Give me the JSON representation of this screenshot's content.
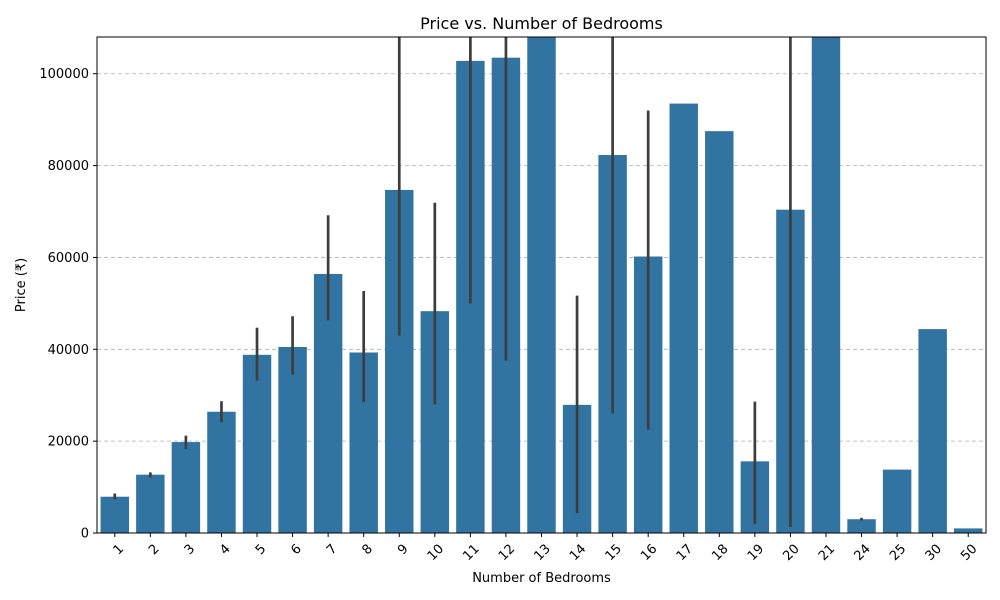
{
  "chart_data": {
    "type": "bar",
    "title": "Price vs. Number of Bedrooms",
    "xlabel": "Number of Bedrooms",
    "ylabel": "Price (₹)",
    "ylim": [
      0,
      108000
    ],
    "yticks": [
      0,
      20000,
      40000,
      60000,
      80000,
      100000
    ],
    "grid": "y-dashed",
    "bar_color": "#3274a1",
    "errorbar_color": "#3d3d3d",
    "categories": [
      "1",
      "2",
      "3",
      "4",
      "5",
      "6",
      "7",
      "8",
      "9",
      "10",
      "11",
      "12",
      "13",
      "14",
      "15",
      "16",
      "17",
      "18",
      "19",
      "20",
      "21",
      "24",
      "25",
      "30",
      "50"
    ],
    "values": [
      7900,
      12700,
      19800,
      26400,
      38800,
      40500,
      56400,
      39300,
      74700,
      48300,
      102800,
      103500,
      108000,
      27900,
      82300,
      60200,
      93500,
      87500,
      15600,
      70400,
      108000,
      3000,
      13800,
      44400,
      1000
    ],
    "error_low": [
      7300,
      12100,
      18300,
      24100,
      33200,
      34500,
      46300,
      28500,
      43000,
      28000,
      50000,
      37500,
      null,
      4300,
      26000,
      22500,
      null,
      null,
      2000,
      1300,
      null,
      2700,
      null,
      null,
      null
    ],
    "error_high": [
      8600,
      13200,
      21200,
      28700,
      44700,
      47200,
      69200,
      52700,
      108000,
      71900,
      108000,
      108000,
      null,
      51700,
      108000,
      92000,
      null,
      null,
      28600,
      108000,
      null,
      3300,
      null,
      null,
      null
    ]
  }
}
